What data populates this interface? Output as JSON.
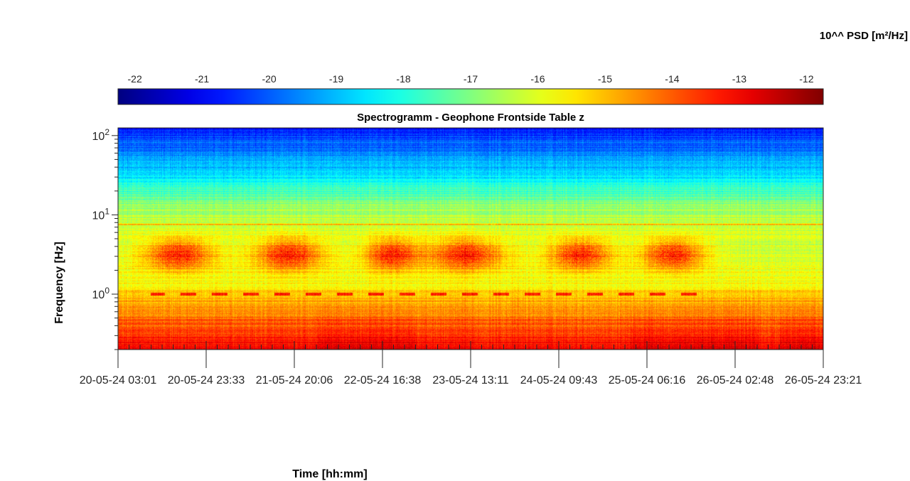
{
  "chart_data": {
    "type": "heatmap",
    "title": "Spectrogramm - Geophone Frontside Table z",
    "xlabel": "Time [hh:mm]",
    "ylabel": "Frequency [Hz]",
    "colorbar": {
      "label": "10^^ PSD [m²/Hz]",
      "ticks": [
        "-22",
        "-21",
        "-20",
        "-19",
        "-18",
        "-17",
        "-16",
        "-15",
        "-14",
        "-13",
        "-12"
      ],
      "range": [
        -22.25,
        -11.75
      ],
      "colormap": "jet",
      "placement": "top"
    },
    "y_scale": "log",
    "ylim": [
      0.2,
      125
    ],
    "y_ticks": [
      {
        "value": 100,
        "base": "10",
        "exp": "2"
      },
      {
        "value": 10,
        "base": "10",
        "exp": "1"
      },
      {
        "value": 1,
        "base": "10",
        "exp": "0"
      }
    ],
    "x_ticks": [
      "20-05-24  03:01",
      "20-05-24  23:33",
      "21-05-24  20:06",
      "22-05-24  16:38",
      "23-05-24  13:11",
      "24-05-24  09:43",
      "25-05-24  06:16",
      "26-05-24  02:48",
      "26-05-24  23:21"
    ],
    "grid": false,
    "features": [
      {
        "description": "broadband daytime activity 1-8 Hz",
        "days": 6
      },
      {
        "band_hz": 1.0,
        "note": "dashed narrow line"
      },
      {
        "band_hz": 7.5,
        "note": "persistent narrow line"
      }
    ]
  },
  "colors": {
    "jet_low": "#00007f",
    "jet_mid": "#7fff7f",
    "jet_high": "#7f0000"
  }
}
